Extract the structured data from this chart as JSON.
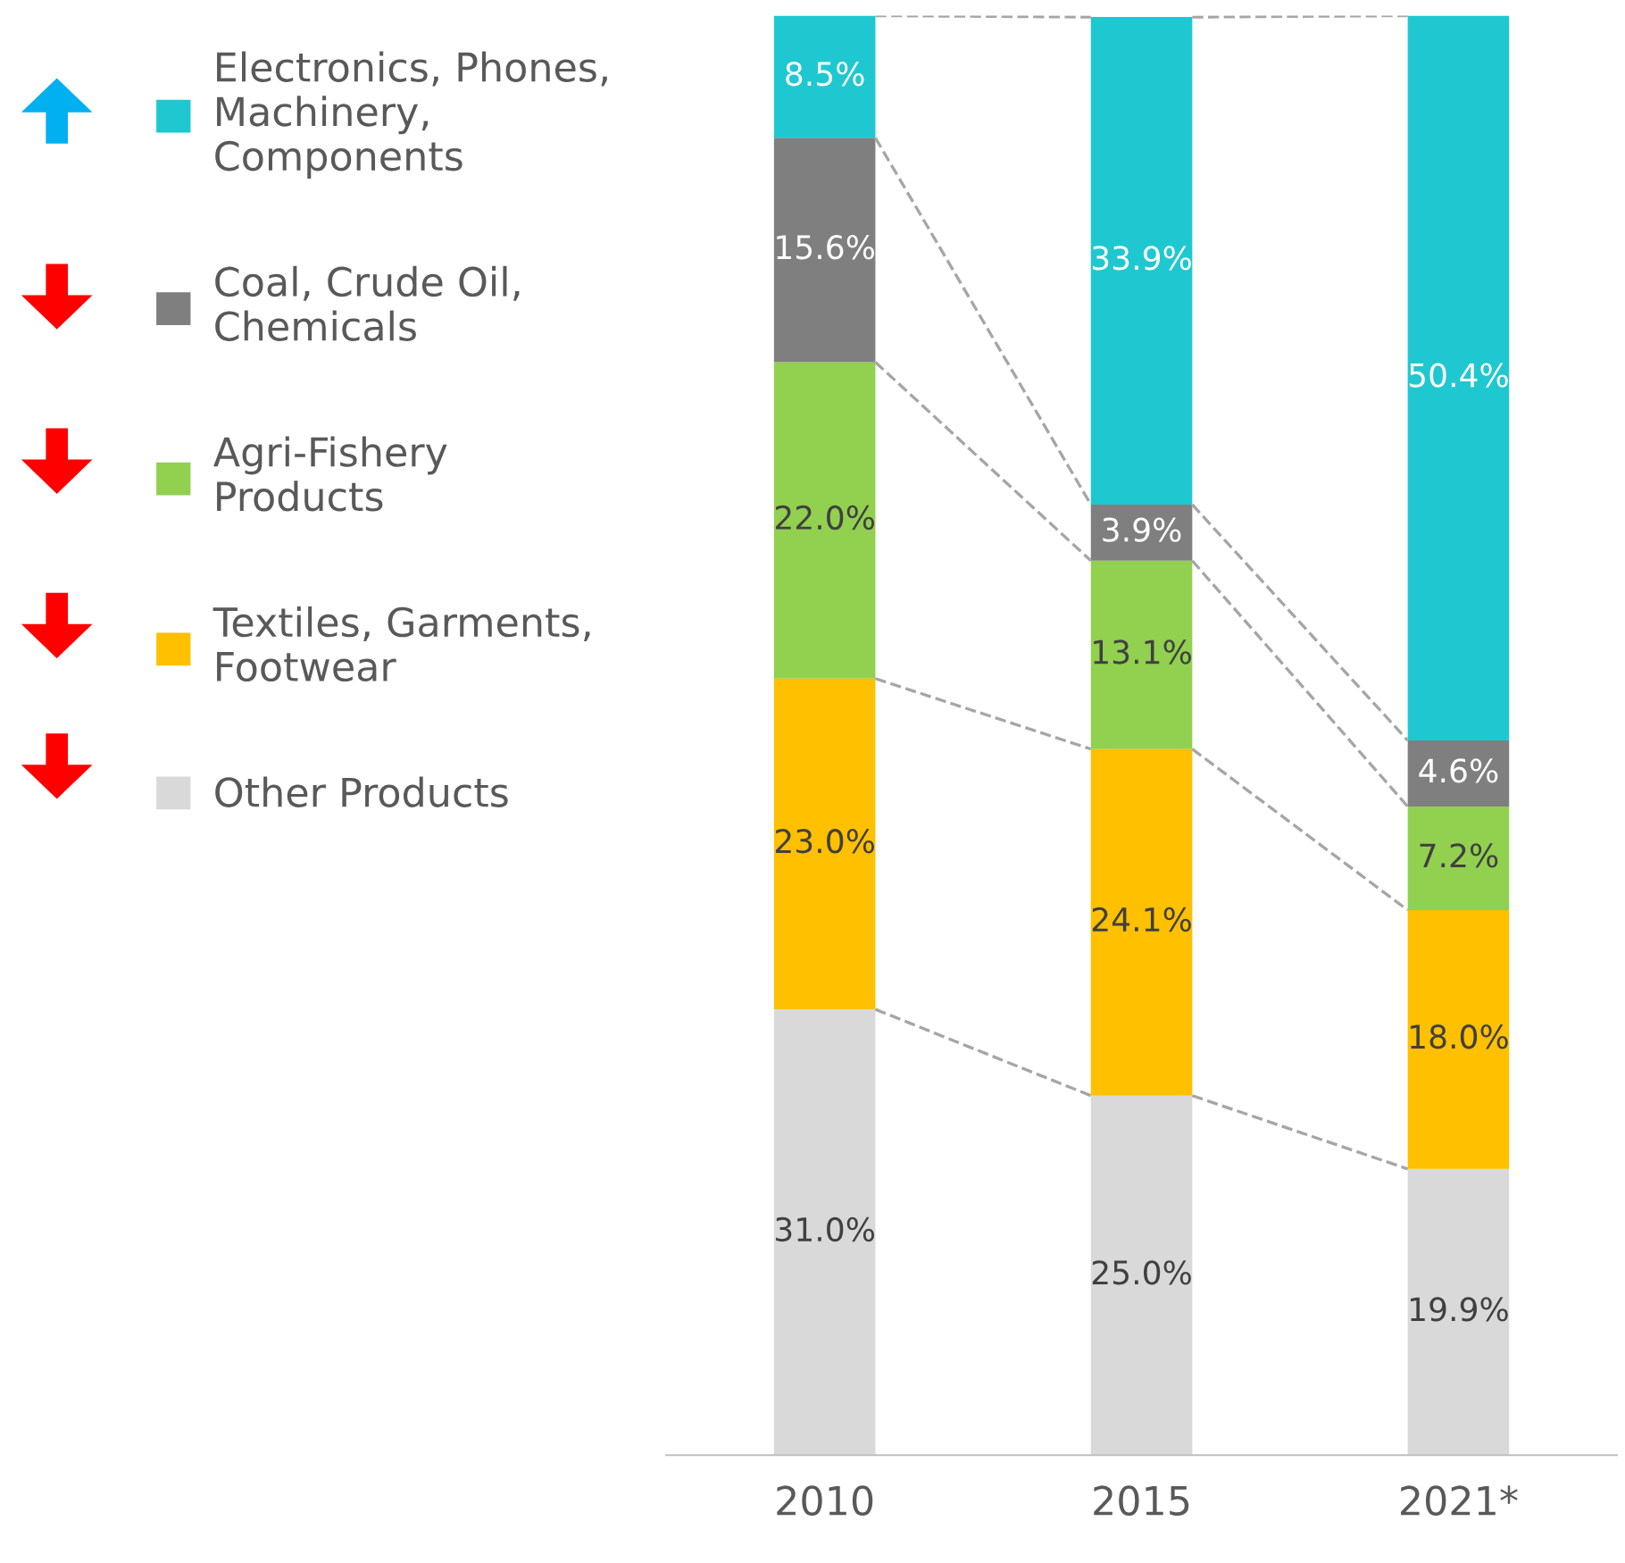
{
  "chart_data": {
    "type": "bar",
    "stacked": true,
    "categories": [
      "2010",
      "2015",
      "2021*"
    ],
    "series": [
      {
        "name": "Other Products",
        "color": "#d9d9d9",
        "values": [
          31.0,
          25.0,
          19.9
        ],
        "value_labels": [
          "31.0%",
          "25.0%",
          "19.9%"
        ]
      },
      {
        "name": "Textiles, Garments,\nFootwear",
        "color": "#ffc000",
        "values": [
          23.0,
          24.1,
          18.0
        ],
        "value_labels": [
          "23.0%",
          "24.1%",
          "18.0%"
        ]
      },
      {
        "name": "Agri-Fishery\nProducts",
        "color": "#92d050",
        "values": [
          22.0,
          13.1,
          7.2
        ],
        "value_labels": [
          "22.0%",
          "13.1%",
          "7.2%"
        ]
      },
      {
        "name": "Coal, Crude Oil,\nChemicals",
        "color": "#7f7f7f",
        "values": [
          15.6,
          3.9,
          4.6
        ],
        "value_labels": [
          "15.6%",
          "3.9%",
          "4.6%"
        ]
      },
      {
        "name": "Electronics, Phones,\nMachinery,\nComponents",
        "color": "#1fc8d0",
        "values": [
          8.5,
          33.9,
          50.4
        ],
        "value_labels": [
          "8.5%",
          "33.9%",
          "50.4%"
        ]
      }
    ],
    "legend": "left",
    "grid": false,
    "tick_labels": "x"
  }
}
